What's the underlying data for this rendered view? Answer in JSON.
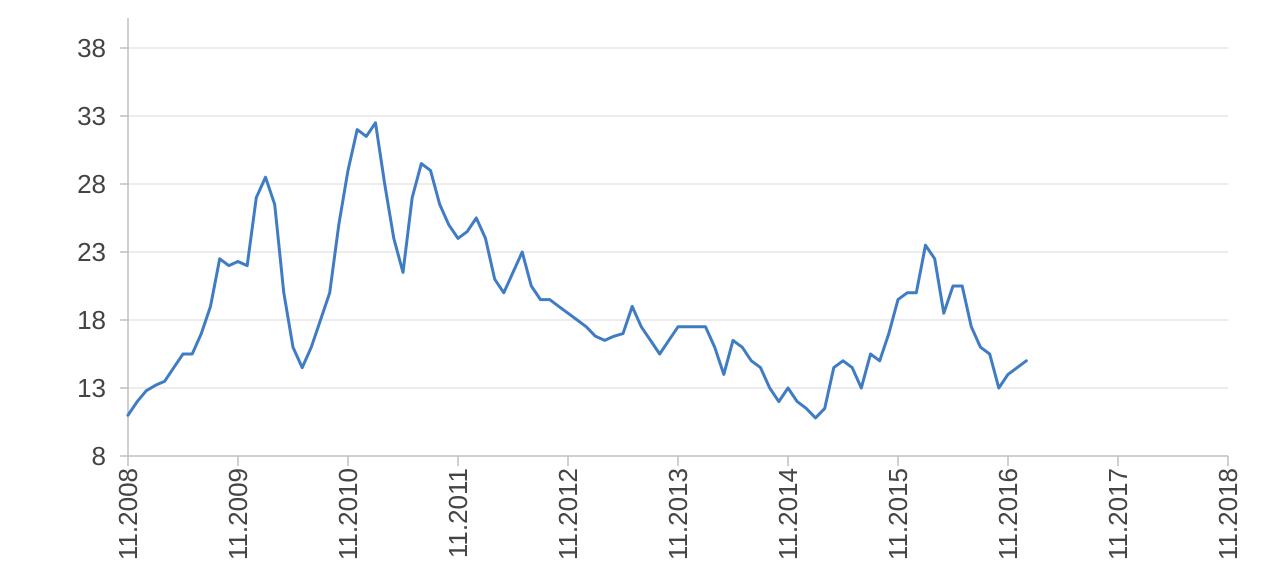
{
  "chart_data": {
    "type": "line",
    "title": "",
    "xlabel": "",
    "ylabel": "",
    "ylim": [
      8,
      38
    ],
    "yticks": [
      "38",
      "33",
      "28",
      "23",
      "18",
      "13",
      "8"
    ],
    "xlim": [
      "2008-11",
      "2018-11"
    ],
    "xticks": [
      "11.2008",
      "11.2009",
      "11.2010",
      "11.2011",
      "11.2012",
      "11.2013",
      "11.2014",
      "11.2015",
      "11.2016",
      "11.2017",
      "11.2018"
    ],
    "grid": "horizontal",
    "legend": "none",
    "series_color": "#3f7cc4",
    "series": [
      {
        "x": [
          "2008-11-01",
          "2008-12-01",
          "2009-01-01",
          "2009-02-01",
          "2009-03-01",
          "2009-04-01",
          "2009-05-01",
          "2009-06-01",
          "2009-07-01",
          "2009-08-01",
          "2009-09-01",
          "2009-10-01",
          "2009-11-01",
          "2009-12-01",
          "2010-01-01",
          "2010-02-01",
          "2010-03-01",
          "2010-04-01",
          "2010-05-01",
          "2010-06-01",
          "2010-07-01",
          "2010-08-01",
          "2010-09-01",
          "2010-10-01",
          "2010-11-01",
          "2010-12-01",
          "2011-01-01",
          "2011-02-01",
          "2011-03-01",
          "2011-04-01",
          "2011-05-01",
          "2011-06-01",
          "2011-07-01",
          "2011-08-01",
          "2011-09-01",
          "2011-10-01",
          "2011-11-01",
          "2011-12-01",
          "2012-01-01",
          "2012-02-01",
          "2012-03-01",
          "2012-04-01",
          "2012-05-01",
          "2012-06-01",
          "2012-07-01",
          "2012-08-01",
          "2012-09-01",
          "2012-10-01",
          "2012-11-01",
          "2012-12-01",
          "2013-01-01",
          "2013-02-01",
          "2013-03-01",
          "2013-04-01",
          "2013-05-01",
          "2013-06-01",
          "2013-07-01",
          "2013-08-01",
          "2013-09-01",
          "2013-10-01",
          "2013-11-01",
          "2013-12-01",
          "2014-01-01",
          "2014-02-01",
          "2014-03-01",
          "2014-04-01",
          "2014-05-01",
          "2014-06-01",
          "2014-07-01",
          "2014-08-01",
          "2014-09-01",
          "2014-10-01",
          "2014-11-01",
          "2014-12-01",
          "2015-01-01",
          "2015-02-01",
          "2015-03-01",
          "2015-04-01",
          "2015-05-01",
          "2015-06-01",
          "2015-07-01",
          "2015-08-01",
          "2015-09-01",
          "2015-10-01",
          "2015-11-01",
          "2015-12-01",
          "2016-01-01",
          "2016-02-01",
          "2016-03-01",
          "2016-04-01",
          "2016-05-01",
          "2016-06-01",
          "2016-07-01",
          "2016-08-01",
          "2016-09-01",
          "2016-10-01",
          "2016-11-01",
          "2016-12-01",
          "2017-01-01"
        ],
        "values": [
          11.0,
          12.0,
          12.8,
          13.2,
          13.5,
          14.5,
          15.5,
          15.5,
          17.0,
          19.0,
          22.5,
          22.0,
          22.3,
          22.0,
          27.0,
          28.5,
          26.5,
          20.0,
          16.0,
          14.5,
          16.0,
          18.0,
          20.0,
          25.0,
          29.0,
          32.0,
          31.5,
          32.5,
          28.0,
          24.0,
          21.5,
          27.0,
          29.5,
          29.0,
          26.5,
          25.0,
          24.0,
          24.5,
          25.5,
          24.0,
          21.0,
          20.0,
          21.5,
          23.0,
          20.5,
          19.5,
          19.5,
          19.0,
          18.5,
          18.0,
          17.5,
          16.8,
          16.5,
          16.8,
          17.0,
          19.0,
          17.5,
          16.5,
          15.5,
          16.5,
          17.5,
          17.5,
          17.5,
          17.5,
          16.0,
          14.0,
          16.5,
          16.0,
          15.0,
          14.5,
          13.0,
          12.0,
          13.0,
          12.0,
          11.5,
          10.8,
          11.5,
          14.5,
          15.0,
          14.5,
          13.0,
          15.5,
          15.0,
          17.0,
          19.5,
          20.0,
          20.0,
          23.5,
          22.5,
          18.5,
          20.5,
          20.5,
          17.5,
          16.0,
          15.5,
          13.0,
          14.0,
          14.5,
          15.0
        ]
      }
    ]
  }
}
